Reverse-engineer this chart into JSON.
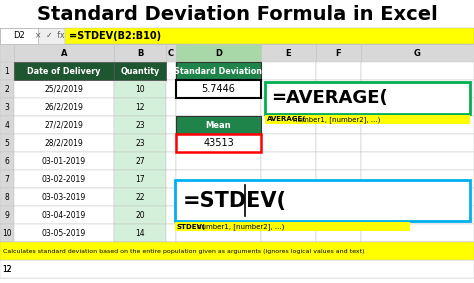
{
  "title": "Standard Deviation Formula in Excel",
  "title_fontsize": 14,
  "title_fontweight": "bold",
  "bg_color": "#ffffff",
  "formula_bar_label": "D2",
  "formula_bar_text": "=STDEV(B2:B10)",
  "col_A_data": [
    "Date of Delivery",
    "25/2/2019",
    "26/2/2019",
    "27/2/2019",
    "28/2/2019",
    "03-01-2019",
    "03-02-2019",
    "03-03-2019",
    "03-04-2019",
    "03-05-2019",
    "",
    ""
  ],
  "col_B_data": [
    "Quantity",
    "10",
    "12",
    "23",
    "23",
    "27",
    "17",
    "22",
    "20",
    "14",
    "",
    ""
  ],
  "std_dev_label": "Standard Deviation",
  "std_dev_value": "5.7446",
  "mean_label": "Mean",
  "mean_value": "43513",
  "average_formula": "=AVERAGE(",
  "average_hint_bold": "AVERAGE(",
  "average_hint_rest": "number1, [number2], ...)",
  "stdev_formula": "=STDEV(",
  "stdev_hint_bold": "STDEV(",
  "stdev_hint_rest": "number1, [number2], ...)",
  "bottom_note": "Calculates standard deviation based on the entire population given as arguments (ignores logical values and text)",
  "green_header_color": "#1e8449",
  "light_green_col_b": "#d5f0da",
  "dark_green_header": "#1e5631",
  "yellow_bg": "#ffff00",
  "formula_bar_yellow": "#ffff00",
  "stdev_box_border": "#00b0f0",
  "average_box_border": "#00b050",
  "red_border": "#ff0000",
  "black_border": "#000000",
  "grid_line_color": "#c0c0c0",
  "row_header_bg": "#d8d8d8",
  "col_header_bg": "#d8d8d8",
  "d_col_header_bg": "#a8d8a8"
}
